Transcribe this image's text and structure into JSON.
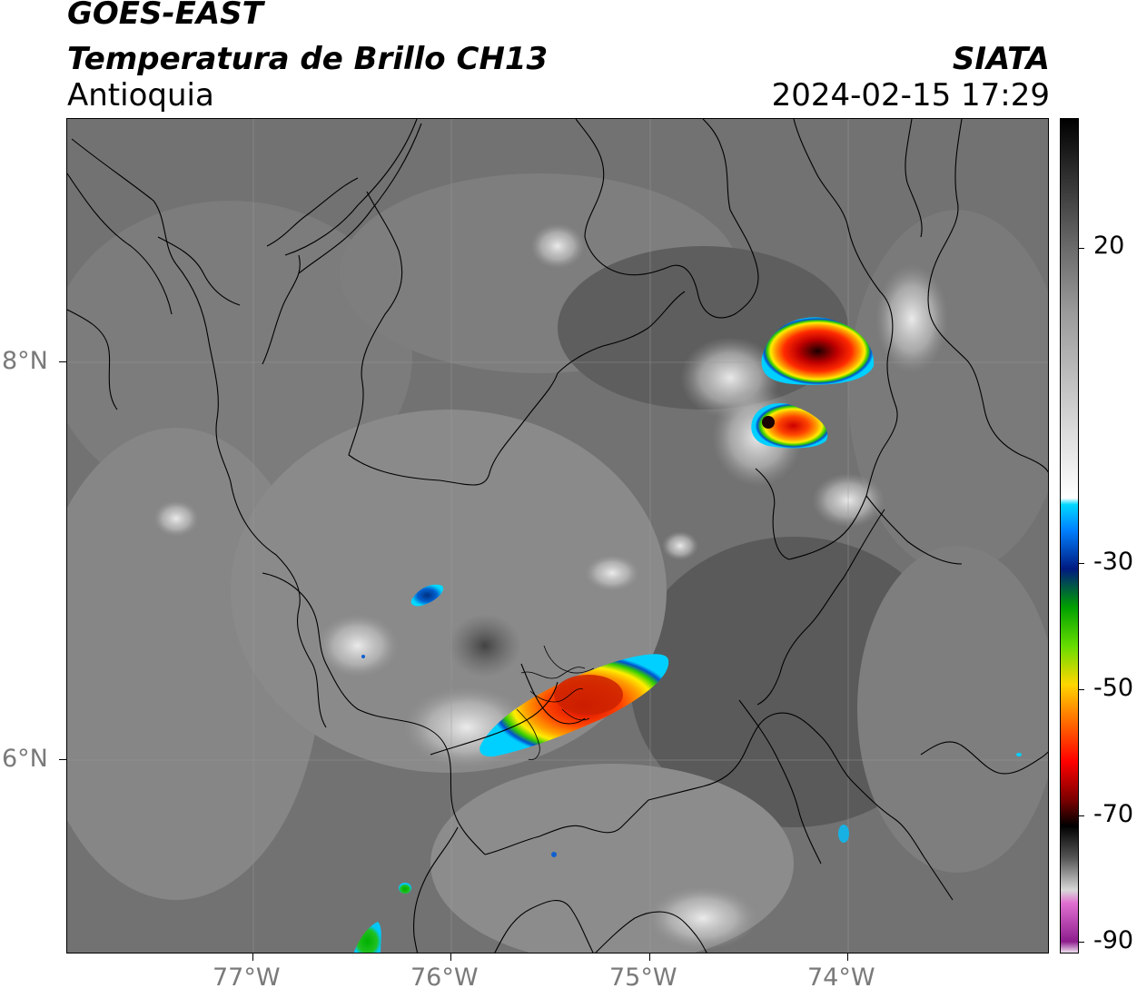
{
  "header": {
    "satellite": "GOES-EAST",
    "product": "Temperatura de Brillo CH13",
    "region": "Antioquia",
    "org": "SIATA",
    "datetime": "2024-02-15 17:29"
  },
  "map": {
    "lon_labels": [
      "77°W",
      "76°W",
      "75°W",
      "74°W"
    ],
    "lat_labels": [
      "8°N",
      "6°N"
    ],
    "background_color": "#6d6d6d",
    "border_color": "#000000"
  },
  "colorbar": {
    "labels": [
      "20",
      "-30",
      "-50",
      "-70",
      "-90"
    ],
    "gradient_stops": [
      {
        "value": -90,
        "color": "#ffffff"
      },
      {
        "value": -88,
        "color": "#8e1e8e"
      },
      {
        "value": -82,
        "color": "#e070d0"
      },
      {
        "value": -80,
        "color": "#d8d8d8"
      },
      {
        "value": -75,
        "color": "#555555"
      },
      {
        "value": -70,
        "color": "#000000"
      },
      {
        "value": -66,
        "color": "#7a0000"
      },
      {
        "value": -60,
        "color": "#ff0000"
      },
      {
        "value": -52,
        "color": "#ff8c00"
      },
      {
        "value": -48,
        "color": "#ffd700"
      },
      {
        "value": -42,
        "color": "#66dd00"
      },
      {
        "value": -36,
        "color": "#00a000"
      },
      {
        "value": -30,
        "color": "#001a80"
      },
      {
        "value": -24,
        "color": "#0080ff"
      },
      {
        "value": -20,
        "color": "#00d8ff"
      },
      {
        "value": -19,
        "color": "#ffffff"
      },
      {
        "value": 10,
        "color": "#9a9a9a"
      },
      {
        "value": 20,
        "color": "#6a6a6a"
      },
      {
        "value": 40,
        "color": "#000000"
      }
    ]
  }
}
